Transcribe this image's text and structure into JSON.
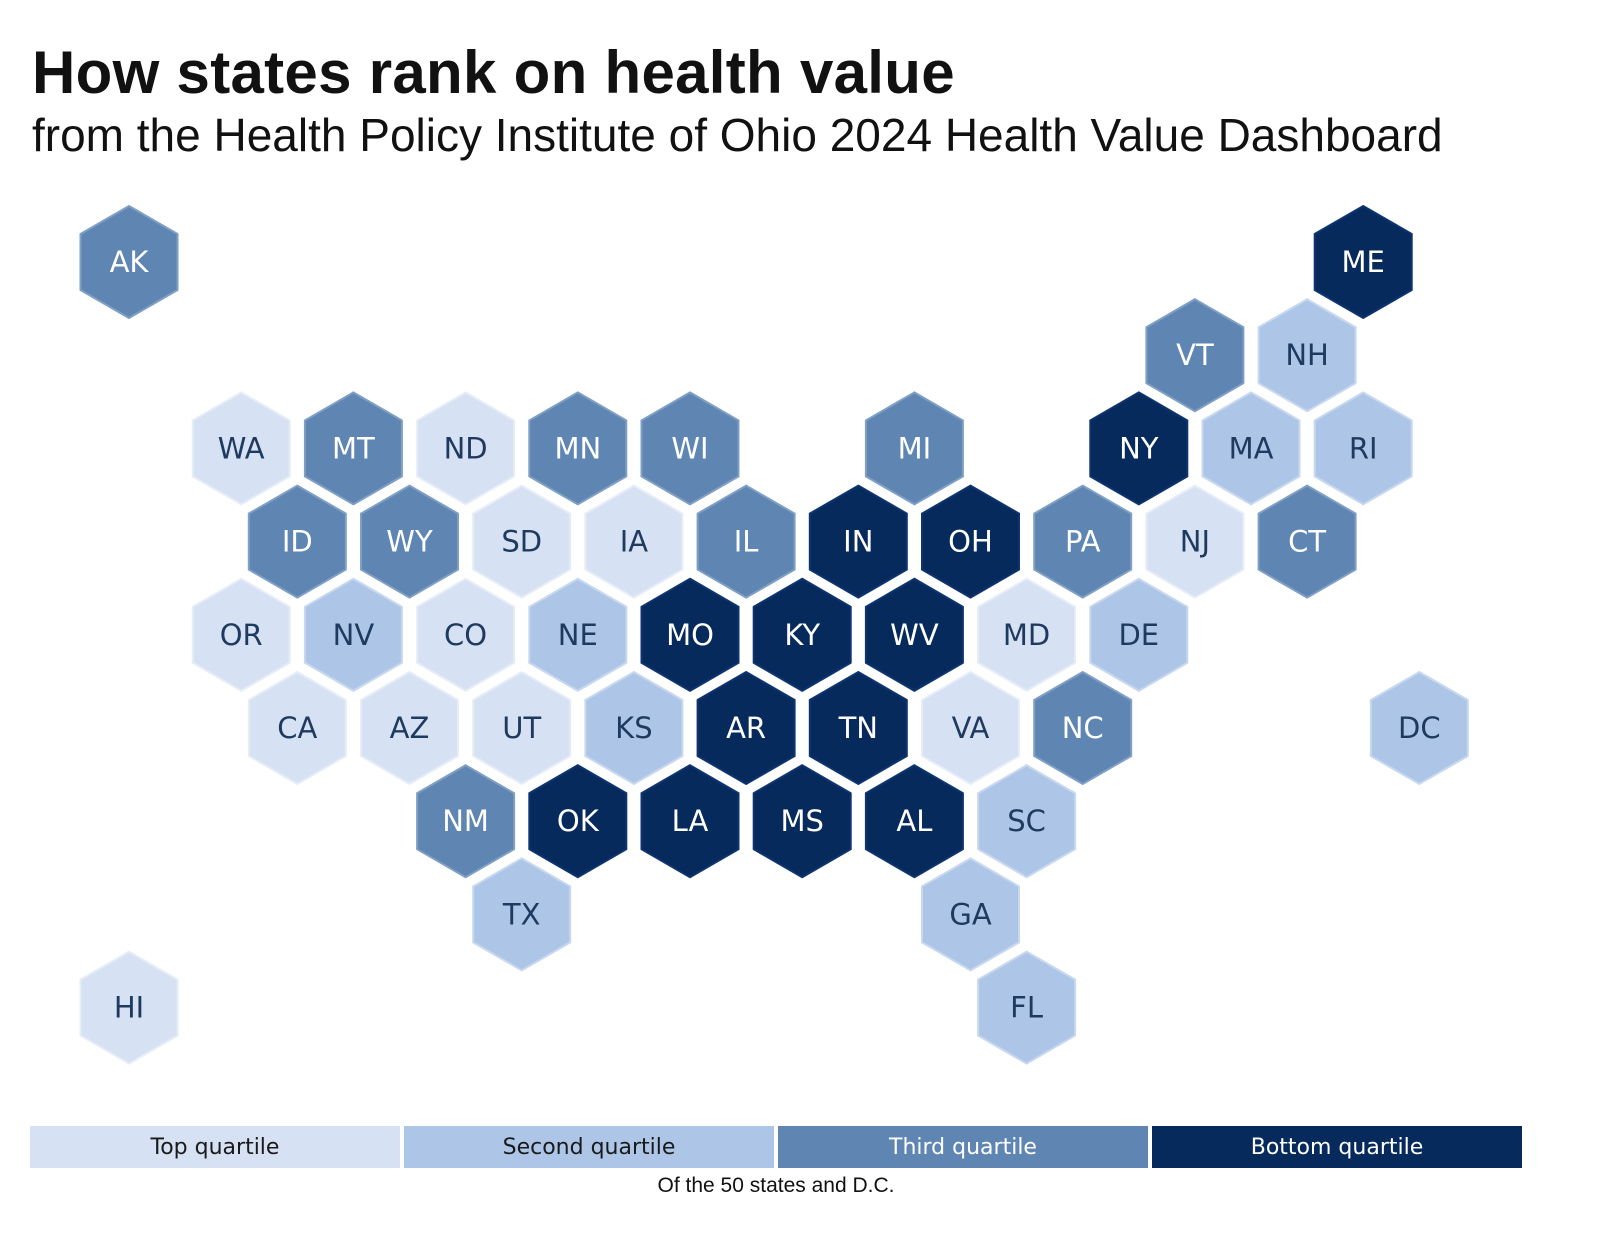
{
  "header": {
    "title": "How states rank on health value",
    "subtitle": "from the Health Policy Institute of Ohio 2024 Health Value Dashboard"
  },
  "legend": {
    "items": [
      {
        "label": "Top quartile",
        "color": "#d6e2f3",
        "text_color": "#1a1a1a"
      },
      {
        "label": "Second quartile",
        "color": "#adc6e8",
        "text_color": "#1a1a1a"
      },
      {
        "label": "Third quartile",
        "color": "#5f86b3",
        "text_color": "#ffffff"
      },
      {
        "label": "Bottom quartile",
        "color": "#062a5c",
        "text_color": "#ffffff"
      }
    ],
    "note": "Of the 50 states and D.C."
  },
  "chart_data": {
    "type": "hex-tile-map",
    "quartile_scale": [
      "Top quartile",
      "Second quartile",
      "Third quartile",
      "Bottom quartile"
    ],
    "states": [
      {
        "abbr": "AK",
        "row": 0,
        "col": 0,
        "quartile": 3
      },
      {
        "abbr": "ME",
        "row": 0,
        "col": 11,
        "quartile": 4
      },
      {
        "abbr": "VT",
        "row": 1,
        "col": 9.5,
        "quartile": 3
      },
      {
        "abbr": "NH",
        "row": 1,
        "col": 10.5,
        "quartile": 2
      },
      {
        "abbr": "WA",
        "row": 2,
        "col": 1,
        "quartile": 1
      },
      {
        "abbr": "MT",
        "row": 2,
        "col": 2,
        "quartile": 3
      },
      {
        "abbr": "ND",
        "row": 2,
        "col": 3,
        "quartile": 1
      },
      {
        "abbr": "MN",
        "row": 2,
        "col": 4,
        "quartile": 3
      },
      {
        "abbr": "WI",
        "row": 2,
        "col": 5,
        "quartile": 3
      },
      {
        "abbr": "MI",
        "row": 2,
        "col": 7,
        "quartile": 3
      },
      {
        "abbr": "NY",
        "row": 2,
        "col": 9,
        "quartile": 4
      },
      {
        "abbr": "MA",
        "row": 2,
        "col": 10,
        "quartile": 2
      },
      {
        "abbr": "RI",
        "row": 2,
        "col": 11,
        "quartile": 2
      },
      {
        "abbr": "ID",
        "row": 3,
        "col": 1.5,
        "quartile": 3
      },
      {
        "abbr": "WY",
        "row": 3,
        "col": 2.5,
        "quartile": 3
      },
      {
        "abbr": "SD",
        "row": 3,
        "col": 3.5,
        "quartile": 1
      },
      {
        "abbr": "IA",
        "row": 3,
        "col": 4.5,
        "quartile": 1
      },
      {
        "abbr": "IL",
        "row": 3,
        "col": 5.5,
        "quartile": 3
      },
      {
        "abbr": "IN",
        "row": 3,
        "col": 6.5,
        "quartile": 4
      },
      {
        "abbr": "OH",
        "row": 3,
        "col": 7.5,
        "quartile": 4
      },
      {
        "abbr": "PA",
        "row": 3,
        "col": 8.5,
        "quartile": 3
      },
      {
        "abbr": "NJ",
        "row": 3,
        "col": 9.5,
        "quartile": 1
      },
      {
        "abbr": "CT",
        "row": 3,
        "col": 10.5,
        "quartile": 3
      },
      {
        "abbr": "OR",
        "row": 4,
        "col": 1,
        "quartile": 1
      },
      {
        "abbr": "NV",
        "row": 4,
        "col": 2,
        "quartile": 2
      },
      {
        "abbr": "CO",
        "row": 4,
        "col": 3,
        "quartile": 1
      },
      {
        "abbr": "NE",
        "row": 4,
        "col": 4,
        "quartile": 2
      },
      {
        "abbr": "MO",
        "row": 4,
        "col": 5,
        "quartile": 4
      },
      {
        "abbr": "KY",
        "row": 4,
        "col": 6,
        "quartile": 4
      },
      {
        "abbr": "WV",
        "row": 4,
        "col": 7,
        "quartile": 4
      },
      {
        "abbr": "MD",
        "row": 4,
        "col": 8,
        "quartile": 1
      },
      {
        "abbr": "DE",
        "row": 4,
        "col": 9,
        "quartile": 2
      },
      {
        "abbr": "CA",
        "row": 5,
        "col": 1.5,
        "quartile": 1
      },
      {
        "abbr": "AZ",
        "row": 5,
        "col": 2.5,
        "quartile": 1
      },
      {
        "abbr": "UT",
        "row": 5,
        "col": 3.5,
        "quartile": 1
      },
      {
        "abbr": "KS",
        "row": 5,
        "col": 4.5,
        "quartile": 2
      },
      {
        "abbr": "AR",
        "row": 5,
        "col": 5.5,
        "quartile": 4
      },
      {
        "abbr": "TN",
        "row": 5,
        "col": 6.5,
        "quartile": 4
      },
      {
        "abbr": "VA",
        "row": 5,
        "col": 7.5,
        "quartile": 1
      },
      {
        "abbr": "NC",
        "row": 5,
        "col": 8.5,
        "quartile": 3
      },
      {
        "abbr": "DC",
        "row": 5,
        "col": 11.5,
        "quartile": 2
      },
      {
        "abbr": "NM",
        "row": 6,
        "col": 3,
        "quartile": 3
      },
      {
        "abbr": "OK",
        "row": 6,
        "col": 4,
        "quartile": 4
      },
      {
        "abbr": "LA",
        "row": 6,
        "col": 5,
        "quartile": 4
      },
      {
        "abbr": "MS",
        "row": 6,
        "col": 6,
        "quartile": 4
      },
      {
        "abbr": "AL",
        "row": 6,
        "col": 7,
        "quartile": 4
      },
      {
        "abbr": "SC",
        "row": 6,
        "col": 8,
        "quartile": 2
      },
      {
        "abbr": "TX",
        "row": 7,
        "col": 3.5,
        "quartile": 2
      },
      {
        "abbr": "GA",
        "row": 7,
        "col": 7.5,
        "quartile": 2
      },
      {
        "abbr": "HI",
        "row": 8,
        "col": 0,
        "quartile": 1
      },
      {
        "abbr": "FL",
        "row": 8,
        "col": 8,
        "quartile": 2
      }
    ]
  }
}
